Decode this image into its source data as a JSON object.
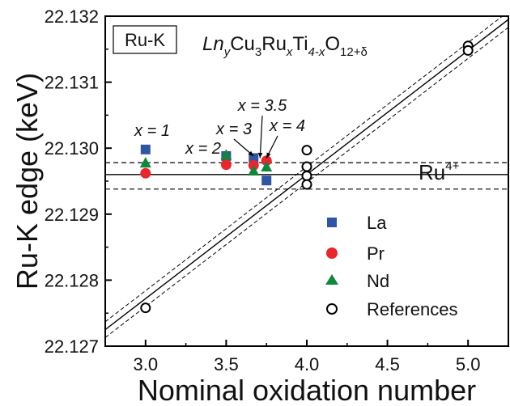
{
  "chart_data": {
    "type": "scatter",
    "title": "",
    "xlabel": "Nominal oxidation number",
    "ylabel": "Ru-K edge (keV)",
    "xlim": [
      2.75,
      5.25
    ],
    "ylim": [
      22.127,
      22.132
    ],
    "x_ticks": [
      "3.0",
      "3.5",
      "4.0",
      "4.5",
      "5.0"
    ],
    "x_tick_values": [
      3.0,
      3.5,
      4.0,
      4.5,
      5.0
    ],
    "y_ticks": [
      "22.127",
      "22.128",
      "22.129",
      "22.130",
      "22.131",
      "22.132"
    ],
    "y_tick_values": [
      22.127,
      22.128,
      22.129,
      22.13,
      22.131,
      22.132
    ],
    "grid": false,
    "legend_position": "lower-right",
    "panel_label": "Ru-K",
    "formula": {
      "ln": "Ln",
      "ln_sub": "y",
      "cu": "Cu",
      "cu_sub": "3",
      "ru": "Ru",
      "ru_sub": "x",
      "ti": "Ti",
      "ti_sub": "4-x",
      "o": "O",
      "o_sub": "12+δ"
    },
    "reference_line": {
      "label": "Ru",
      "label_sup": "4+",
      "y": 22.1296,
      "band": [
        22.12938,
        22.12978
      ]
    },
    "fit_line": {
      "points": [
        [
          2.75,
          22.12725
        ],
        [
          5.25,
          22.13195
        ]
      ],
      "band_offset": 0.00012
    },
    "series": [
      {
        "name": "La",
        "marker": "square",
        "color": "#2f55a5",
        "points": [
          [
            3.0,
            22.12998
          ],
          [
            3.5,
            22.12988
          ],
          [
            3.67,
            22.12985
          ],
          [
            3.75,
            22.12951
          ]
        ]
      },
      {
        "name": "Pr",
        "marker": "circle",
        "color": "#e8262b",
        "points": [
          [
            3.0,
            22.12962
          ],
          [
            3.5,
            22.12975
          ],
          [
            3.67,
            22.12974
          ],
          [
            3.75,
            22.12981
          ]
        ]
      },
      {
        "name": "Nd",
        "marker": "triangle",
        "color": "#11873c",
        "points": [
          [
            3.0,
            22.12978
          ],
          [
            3.5,
            22.1299
          ],
          [
            3.67,
            22.12966
          ],
          [
            3.75,
            22.12972
          ]
        ]
      },
      {
        "name": "References",
        "marker": "open-circle",
        "color": "#000000",
        "points": [
          [
            3.0,
            22.12758
          ],
          [
            4.0,
            22.12997
          ],
          [
            4.0,
            22.12972
          ],
          [
            4.0,
            22.12958
          ],
          [
            4.0,
            22.12945
          ],
          [
            5.0,
            22.13155
          ],
          [
            5.0,
            22.13148
          ]
        ]
      }
    ],
    "annotations": [
      {
        "text": "x = 1",
        "x": 3.0,
        "y": 22.13007
      },
      {
        "text": "x = 2",
        "x": 3.5,
        "y": 22.12992
      },
      {
        "text": "x = 3",
        "x": 3.67,
        "y": 22.12988
      },
      {
        "text": "x = 3.5",
        "x": 3.71,
        "y": 22.12985
      },
      {
        "text": "x = 4",
        "x": 3.75,
        "y": 22.12985
      }
    ]
  }
}
